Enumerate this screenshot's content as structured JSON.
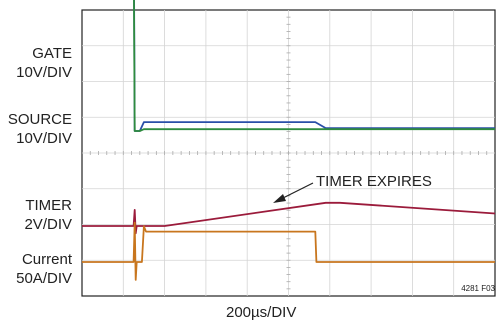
{
  "chart_data": {
    "type": "line",
    "title": "",
    "xlabel": "200µs/DIV",
    "ylabel": "",
    "x_units": "µs",
    "x_divisions": 10,
    "y_divisions": 8,
    "xlim": [
      0,
      2000
    ],
    "grid": true,
    "channels": [
      {
        "name": "GATE",
        "scale": "10V/DIV",
        "color": "#2a4fa8"
      },
      {
        "name": "SOURCE",
        "scale": "10V/DIV",
        "color": "#2e8b3e"
      },
      {
        "name": "TIMER",
        "scale": "2V/DIV",
        "color": "#9b1b3b"
      },
      {
        "name": "Current",
        "scale": "50A/DIV",
        "color": "#c8761e"
      }
    ],
    "series": [
      {
        "name": "GATE",
        "x": [
          0,
          250,
          255,
          280,
          300,
          1130,
          1180,
          2000
        ],
        "y_div": [
          6.55,
          6.55,
          0.0,
          0.0,
          0.25,
          0.25,
          0.08,
          0.08
        ],
        "color": "#2a4fa8"
      },
      {
        "name": "SOURCE",
        "x": [
          0,
          250,
          255,
          280,
          300,
          2000
        ],
        "y_div": [
          5.55,
          5.55,
          0.0,
          0.0,
          0.05,
          0.05
        ],
        "color": "#2e8b3e"
      },
      {
        "name": "TIMER",
        "x": [
          0,
          250,
          255,
          260,
          265,
          400,
          1180,
          1250,
          2000
        ],
        "y_div": [
          0.0,
          0.0,
          0.45,
          -0.2,
          0.0,
          0.0,
          0.65,
          0.65,
          0.35
        ],
        "color": "#9b1b3b"
      },
      {
        "name": "Current",
        "x": [
          0,
          250,
          255,
          260,
          265,
          290,
          300,
          310,
          1130,
          1135,
          2000
        ],
        "y_div": [
          0.0,
          0.0,
          1.1,
          -0.5,
          0.0,
          0.0,
          1.0,
          0.85,
          0.85,
          0.0,
          0.0
        ],
        "color": "#c8761e"
      }
    ],
    "annotations": [
      {
        "text": "TIMER EXPIRES",
        "x": 1180
      }
    ],
    "figure_id": "4281 F03"
  }
}
